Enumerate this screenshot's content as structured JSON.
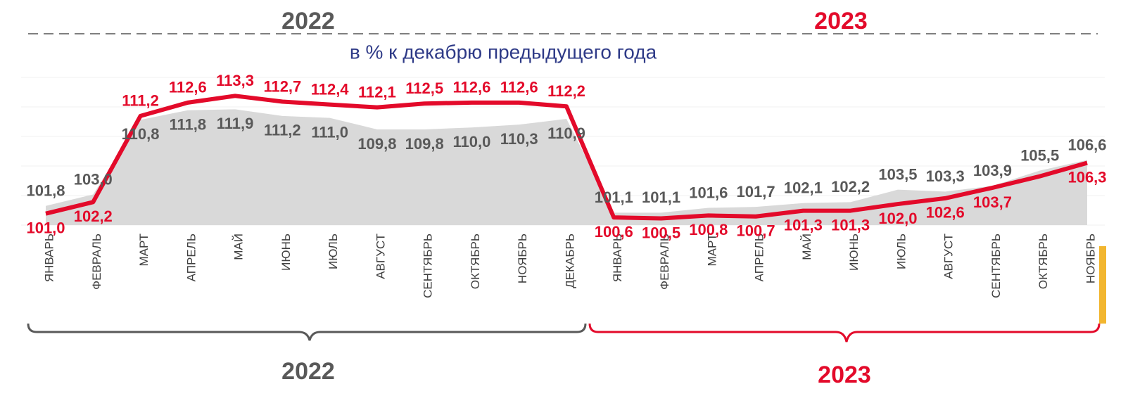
{
  "chart_data": {
    "type": "line",
    "subtitle": "в % к декабрю предыдущего года",
    "top_year_labels": [
      "2022",
      "2023"
    ],
    "bottom_year_labels": [
      "2022",
      "2023"
    ],
    "categories": [
      "ЯНВАРЬ",
      "ФЕВРАЛЬ",
      "МАРТ",
      "АПРЕЛЬ",
      "МАЙ",
      "ИЮНЬ",
      "ИЮЛЬ",
      "АВГУСТ",
      "СЕНТЯБРЬ",
      "ОКТЯБРЬ",
      "НОЯБРЬ",
      "ДЕКАБРЬ",
      "ЯНВАРЬ",
      "ФЕВРАЛЬ",
      "МАРТ",
      "АПРЕЛЬ",
      "МАЙ",
      "ИЮНЬ",
      "ИЮЛЬ",
      "АВГУСТ",
      "СЕНТЯБРЬ",
      "ОКТЯБРЬ",
      "НОЯБРЬ"
    ],
    "series": [
      {
        "style": "area",
        "color": "#d9d9d9",
        "label_color": "#595959",
        "values": [
          101.8,
          103.0,
          110.8,
          111.8,
          111.9,
          111.2,
          111.0,
          109.8,
          109.8,
          110.0,
          110.3,
          110.9,
          101.1,
          101.1,
          101.6,
          101.7,
          102.1,
          102.2,
          103.5,
          103.3,
          103.9,
          105.5,
          106.6
        ],
        "value_labels": [
          "101,8",
          "103,0",
          "110,8",
          "111,8",
          "111,9",
          "111,2",
          "111,0",
          "109,8",
          "109,8",
          "110,0",
          "110,3",
          "110,9",
          "101,1",
          "101,1",
          "101,6",
          "101,7",
          "102,1",
          "102,2",
          "103,5",
          "103,3",
          "103,9",
          "105,5",
          "106,6"
        ]
      },
      {
        "style": "line",
        "color": "#e30a2a",
        "label_color": "#e30a2a",
        "values": [
          101.0,
          102.2,
          111.2,
          112.6,
          113.3,
          112.7,
          112.4,
          112.1,
          112.5,
          112.6,
          112.6,
          112.2,
          100.6,
          100.5,
          100.8,
          100.7,
          101.3,
          101.3,
          102.0,
          102.6,
          103.7,
          104.9,
          106.3
        ],
        "value_labels": [
          "101,0",
          "102,2",
          "111,2",
          "112,6",
          "113,3",
          "112,7",
          "112,4",
          "112,1",
          "112,5",
          "112,6",
          "112,6",
          "112,2",
          "100,6",
          "100,5",
          "100,8",
          "100,7",
          "101,3",
          "101,3",
          "102,0",
          "102,6",
          "103,7",
          null,
          "106,3"
        ]
      }
    ],
    "ylim": [
      99.8,
      114.5
    ]
  }
}
